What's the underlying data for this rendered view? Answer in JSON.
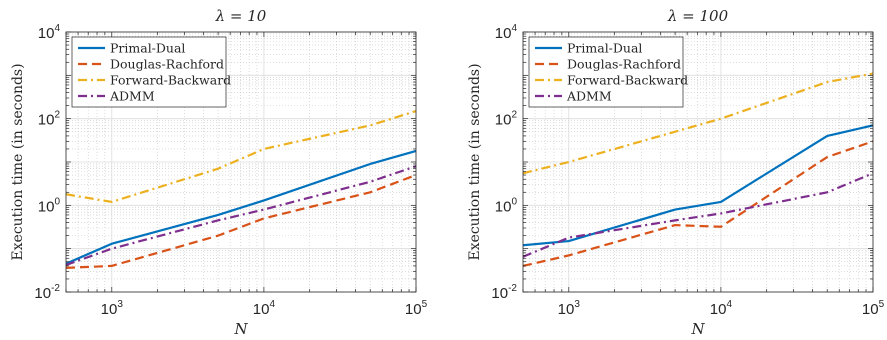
{
  "chart_data": [
    {
      "type": "line",
      "title": "λ = 10",
      "xlabel": "N",
      "ylabel": "Execution time (in seconds)",
      "xscale": "log",
      "yscale": "log",
      "xlim": [
        500,
        100000
      ],
      "ylim": [
        0.01,
        10000
      ],
      "grid": true,
      "legend_position": "top-left",
      "x_ticks": [
        {
          "value": 1000,
          "base": "10",
          "exp": "3"
        },
        {
          "value": 10000,
          "base": "10",
          "exp": "4"
        },
        {
          "value": 100000,
          "base": "10",
          "exp": "5"
        }
      ],
      "y_ticks": [
        {
          "value": 0.01,
          "base": "10",
          "exp": "-2"
        },
        {
          "value": 1,
          "base": "10",
          "exp": "0"
        },
        {
          "value": 100,
          "base": "10",
          "exp": "2"
        },
        {
          "value": 10000,
          "base": "10",
          "exp": "4"
        }
      ],
      "series": [
        {
          "name": "Primal-Dual",
          "color": "#0072BD",
          "dash": "solid",
          "x": [
            500,
            1000,
            5000,
            10000,
            50000,
            100000
          ],
          "y": [
            0.045,
            0.13,
            0.6,
            1.3,
            9.0,
            18.0
          ]
        },
        {
          "name": "Douglas-Rachford",
          "color": "#D95319",
          "dash": "dashed",
          "x": [
            500,
            1000,
            5000,
            10000,
            50000,
            100000
          ],
          "y": [
            0.036,
            0.04,
            0.2,
            0.5,
            2.0,
            5.0
          ]
        },
        {
          "name": "Forward-Backward",
          "color": "#EDB120",
          "dash": "dashdot",
          "x": [
            500,
            1000,
            5000,
            10000,
            50000,
            100000
          ],
          "y": [
            1.8,
            1.2,
            7.0,
            20.0,
            70.0,
            150.0
          ]
        },
        {
          "name": "ADMM",
          "color": "#7E2F8E",
          "dash": "dashdot",
          "x": [
            500,
            1000,
            5000,
            10000,
            50000,
            100000
          ],
          "y": [
            0.042,
            0.1,
            0.45,
            0.8,
            3.5,
            8.0
          ]
        }
      ]
    },
    {
      "type": "line",
      "title": "λ = 100",
      "xlabel": "N",
      "ylabel": "Execution time (in seconds)",
      "xscale": "log",
      "yscale": "log",
      "xlim": [
        500,
        100000
      ],
      "ylim": [
        0.01,
        10000
      ],
      "grid": true,
      "legend_position": "top-left",
      "x_ticks": [
        {
          "value": 1000,
          "base": "10",
          "exp": "3"
        },
        {
          "value": 10000,
          "base": "10",
          "exp": "4"
        },
        {
          "value": 100000,
          "base": "10",
          "exp": "5"
        }
      ],
      "y_ticks": [
        {
          "value": 0.01,
          "base": "10",
          "exp": "-2"
        },
        {
          "value": 1,
          "base": "10",
          "exp": "0"
        },
        {
          "value": 100,
          "base": "10",
          "exp": "2"
        },
        {
          "value": 10000,
          "base": "10",
          "exp": "4"
        }
      ],
      "series": [
        {
          "name": "Primal-Dual",
          "color": "#0072BD",
          "dash": "solid",
          "x": [
            500,
            1000,
            5000,
            10000,
            50000,
            100000
          ],
          "y": [
            0.12,
            0.15,
            0.8,
            1.2,
            40.0,
            70.0
          ]
        },
        {
          "name": "Douglas-Rachford",
          "color": "#D95319",
          "dash": "dashed",
          "x": [
            500,
            1000,
            5000,
            10000,
            50000,
            100000
          ],
          "y": [
            0.04,
            0.07,
            0.35,
            0.32,
            13.0,
            30.0
          ]
        },
        {
          "name": "Forward-Backward",
          "color": "#EDB120",
          "dash": "dashdot",
          "x": [
            500,
            1000,
            5000,
            10000,
            50000,
            100000
          ],
          "y": [
            5.5,
            10.0,
            50.0,
            100.0,
            700.0,
            1100.0
          ]
        },
        {
          "name": "ADMM",
          "color": "#7E2F8E",
          "dash": "dashdot",
          "x": [
            500,
            1000,
            5000,
            10000,
            50000,
            100000
          ],
          "y": [
            0.065,
            0.18,
            0.45,
            0.65,
            2.0,
            5.5
          ]
        }
      ]
    }
  ]
}
